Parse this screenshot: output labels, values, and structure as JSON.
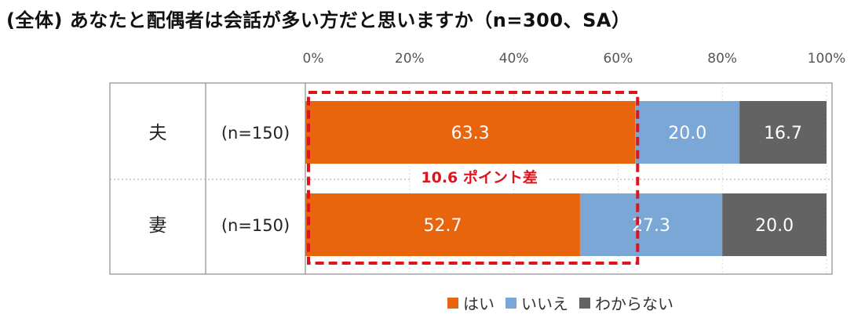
{
  "title": "(全体) あなたと配偶者は会話が多い方だと思いますか（n=300、SA）",
  "chart_data": {
    "type": "bar",
    "orientation": "horizontal",
    "stacked": "percent",
    "categories": [
      "夫",
      "妻"
    ],
    "sample_labels": [
      "(n=150)",
      "(n=150)"
    ],
    "series": [
      {
        "name": "はい",
        "values": [
          63.3,
          52.7
        ],
        "color": "#E8650E"
      },
      {
        "name": "いいえ",
        "values": [
          20.0,
          27.3
        ],
        "color": "#7BA7D6"
      },
      {
        "name": "わからない",
        "values": [
          16.7,
          20.0
        ],
        "color": "#636363"
      }
    ],
    "value_labels": [
      [
        "63.3",
        "20.0",
        "16.7"
      ],
      [
        "52.7",
        "27.3",
        "20.0"
      ]
    ],
    "xlim": [
      0,
      100
    ],
    "xticks": [
      "0%",
      "20%",
      "40%",
      "60%",
      "80%",
      "100%"
    ],
    "grid": true,
    "legend_position": "bottom",
    "annotation": {
      "text": "10.6 ポイント差",
      "color": "#E0121B",
      "style": "dashed-box",
      "covers_series": "はい"
    }
  }
}
